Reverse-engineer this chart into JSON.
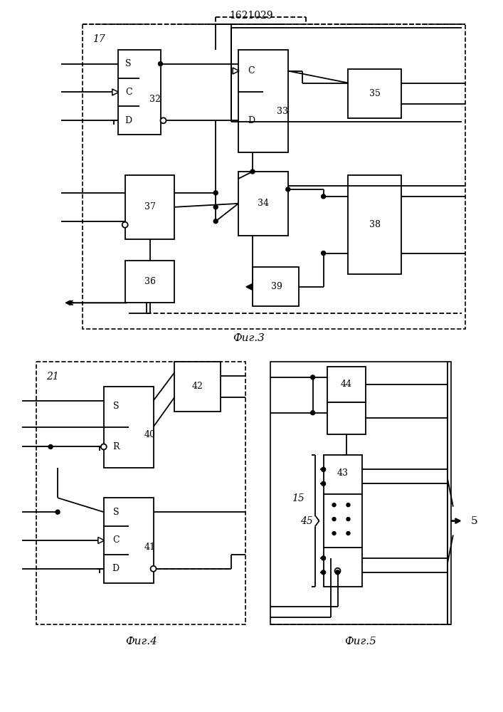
{
  "title": "1621029",
  "fig3_label": "Фиг.3",
  "fig4_label": "Фиг.4",
  "fig5_label": "Фиг.5",
  "bg_color": "#ffffff"
}
